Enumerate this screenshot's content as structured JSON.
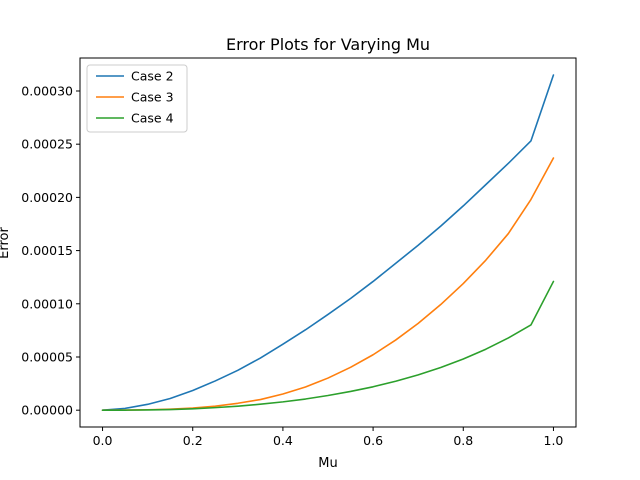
{
  "chart_data": {
    "type": "line",
    "title": "Error Plots for Varying Mu",
    "xlabel": "Mu",
    "ylabel": "Error",
    "xlim": [
      -0.05,
      1.05
    ],
    "ylim": [
      -1.58e-05,
      0.000331
    ],
    "xticks": [
      0.0,
      0.2,
      0.4,
      0.6,
      0.8,
      1.0
    ],
    "xtick_labels": [
      "0.0",
      "0.2",
      "0.4",
      "0.6",
      "0.8",
      "1.0"
    ],
    "yticks": [
      0,
      5e-05,
      0.0001,
      0.00015,
      0.0002,
      0.00025,
      0.0003
    ],
    "ytick_labels": [
      "0.00000",
      "0.00005",
      "0.00010",
      "0.00015",
      "0.00020",
      "0.00025",
      "0.00030"
    ],
    "grid": false,
    "legend_position": "upper-left",
    "x": [
      0.0,
      0.05,
      0.1,
      0.15,
      0.2,
      0.25,
      0.3,
      0.35,
      0.4,
      0.45,
      0.5,
      0.55,
      0.6,
      0.65,
      0.7,
      0.75,
      0.8,
      0.85,
      0.9,
      0.95,
      1.0
    ],
    "series": [
      {
        "name": "Case 2",
        "color": "#1f77b4",
        "values": [
          0.0,
          1.7e-06,
          5.5e-06,
          1.1e-05,
          1.85e-05,
          2.75e-05,
          3.75e-05,
          4.9e-05,
          6.2e-05,
          7.55e-05,
          9e-05,
          0.000105,
          0.000121,
          0.000138,
          0.000155,
          0.000173,
          0.000192,
          0.000212,
          0.000232,
          0.000253,
          0.000315
        ]
      },
      {
        "name": "Case 3",
        "color": "#ff7f0e",
        "values": [
          0.0,
          1e-07,
          4e-07,
          1e-06,
          2e-06,
          3.8e-06,
          6.5e-06,
          1e-05,
          1.52e-05,
          2.18e-05,
          3.02e-05,
          4.03e-05,
          5.21e-05,
          6.59e-05,
          8.16e-05,
          9.93e-05,
          0.000119,
          0.000141,
          0.000166,
          0.000198,
          0.000237
        ]
      },
      {
        "name": "Case 4",
        "color": "#2ca02c",
        "values": [
          0.0,
          5e-08,
          2e-07,
          6e-07,
          1.3e-06,
          2.4e-06,
          3.8e-06,
          5.6e-06,
          7.8e-06,
          1.05e-05,
          1.38e-05,
          1.76e-05,
          2.2e-05,
          2.72e-05,
          3.32e-05,
          4.01e-05,
          4.81e-05,
          5.73e-05,
          6.79e-05,
          8.01e-05,
          0.000121
        ]
      }
    ]
  }
}
